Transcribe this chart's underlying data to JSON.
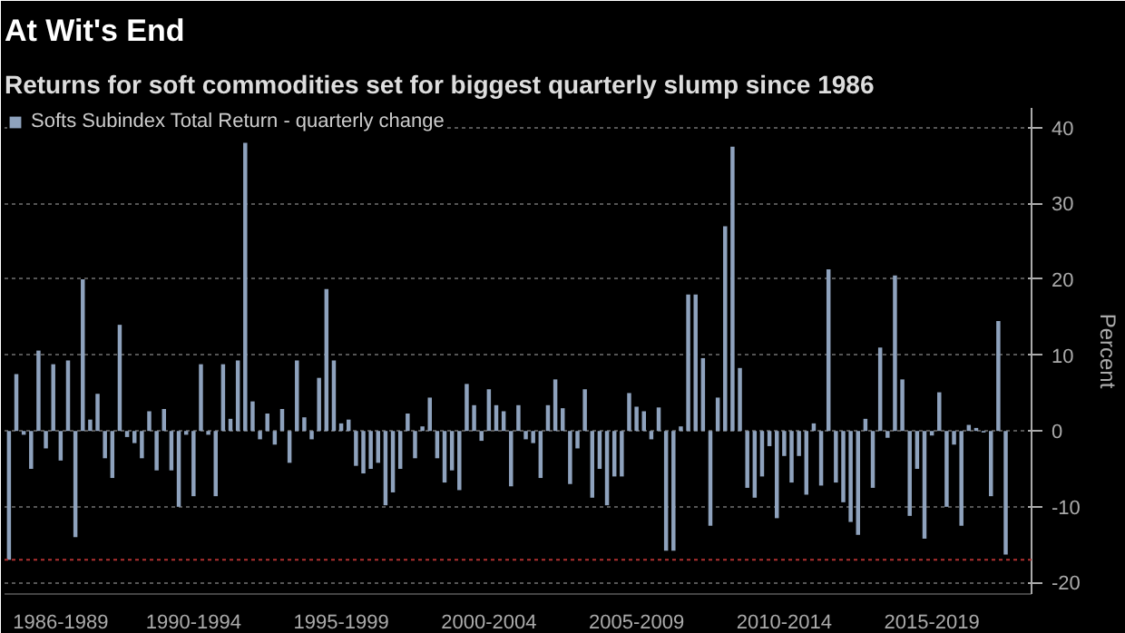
{
  "chart_data": {
    "type": "bar",
    "title": "At Wit's End",
    "subtitle": "Returns for soft commodities set for biggest quarterly slump since 1986",
    "ylabel": "Percent",
    "categories": [
      null,
      null,
      null,
      null,
      null,
      null,
      null,
      "1986-1989",
      null,
      null,
      null,
      null,
      null,
      null,
      null,
      null,
      null,
      null,
      null,
      null,
      null,
      null,
      null,
      null,
      null,
      "1990-1994",
      null,
      null,
      null,
      null,
      null,
      null,
      null,
      null,
      null,
      null,
      null,
      null,
      null,
      null,
      null,
      null,
      null,
      null,
      null,
      "1995-1999",
      null,
      null,
      null,
      null,
      null,
      null,
      null,
      null,
      null,
      null,
      null,
      null,
      null,
      null,
      null,
      null,
      null,
      null,
      null,
      "2000-2004",
      null,
      null,
      null,
      null,
      null,
      null,
      null,
      null,
      null,
      null,
      null,
      null,
      null,
      null,
      null,
      null,
      null,
      null,
      null,
      "2005-2009",
      null,
      null,
      null,
      null,
      null,
      null,
      null,
      null,
      null,
      null,
      null,
      null,
      null,
      null,
      null,
      null,
      null,
      null,
      null,
      "2010-2014",
      null,
      null,
      null,
      null,
      null,
      null,
      null,
      null,
      null,
      null,
      null,
      null,
      null,
      null,
      null,
      null,
      null,
      null,
      null,
      "2015-2019",
      null,
      null,
      null,
      null,
      null,
      null,
      null,
      null,
      null,
      null
    ],
    "series": [
      {
        "name": "Softs Subindex Total Return - quarterly change",
        "color": "#8ea2bd",
        "values": [
          -17,
          7.5,
          -0.5,
          -5,
          10.6,
          -2.3,
          8.8,
          -3.9,
          9.3,
          -14,
          20,
          1.5,
          4.9,
          -3.6,
          -6.2,
          14,
          -0.8,
          -1.6,
          -3.6,
          2.6,
          -5.2,
          2.9,
          -5.2,
          -10,
          -0.5,
          -8.6,
          8.8,
          -0.5,
          -8.6,
          8.8,
          1.6,
          9.3,
          38,
          3.9,
          -1.1,
          2.3,
          -1.8,
          2.9,
          -4.2,
          9.3,
          1.8,
          -1.1,
          7,
          18.7,
          9.3,
          1,
          1.5,
          -4.6,
          -5.6,
          -5,
          -4.2,
          -9.8,
          -8.1,
          -5,
          2.3,
          -3.6,
          0.6,
          4.4,
          -3.6,
          -6.8,
          -5.2,
          -7.8,
          6.2,
          3.4,
          -1.3,
          5.5,
          3.4,
          2.6,
          -7.3,
          3.4,
          -1.1,
          -1.6,
          -6.2,
          3.4,
          6.8,
          3,
          -7,
          -2.3,
          5.5,
          -8.8,
          -5,
          -9.8,
          -6,
          -6,
          5,
          3.2,
          2.6,
          -1.1,
          3.1,
          -15.8,
          -15.8,
          0.6,
          18,
          18,
          9.6,
          -12.5,
          4.4,
          27,
          37.5,
          8.3,
          -7.5,
          -8.8,
          -6,
          -2,
          -11.5,
          -3.3,
          -6.8,
          -3.3,
          -8.4,
          1,
          -7.2,
          21.3,
          -6.8,
          -9.4,
          -12,
          -13.7,
          1.6,
          -7.5,
          11,
          -0.9,
          20.5,
          6.8,
          -11.2,
          -5,
          -14.2,
          -0.6,
          5.1,
          -10,
          -1.8,
          -12.5,
          0.8,
          0.4,
          -0.2,
          -8.6,
          14.5,
          -16.3
        ]
      }
    ],
    "ylim": [
      -21.5,
      42.6
    ],
    "yticks": [
      -20,
      -10,
      0,
      10,
      20,
      30,
      40
    ],
    "ref_lines": [
      {
        "axis": "y",
        "value": -17,
        "color": "#b03030",
        "line_style": "dotted"
      }
    ],
    "grid": "y",
    "legend": "top left"
  }
}
